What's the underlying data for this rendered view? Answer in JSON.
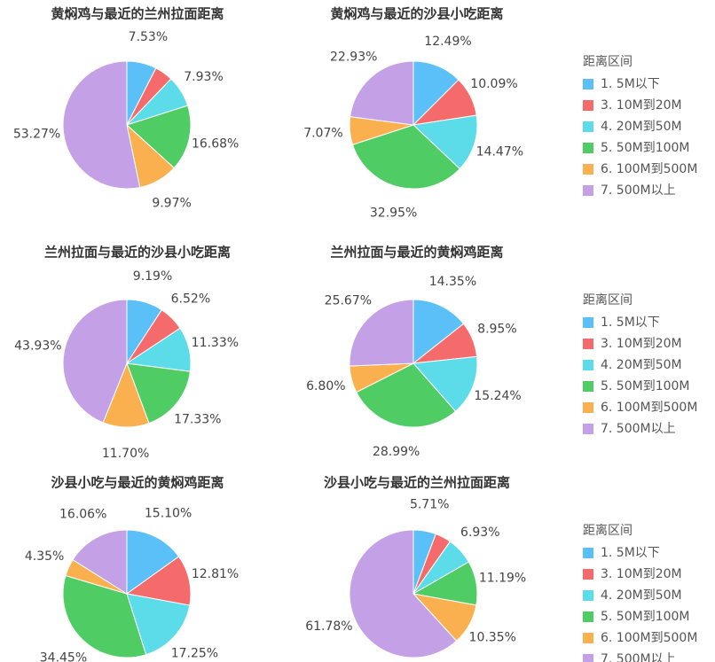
{
  "chart_data": [
    {
      "type": "pie",
      "title": "黄焖鸡与最近的兰州拉面距离",
      "categories": [
        "1. 5M以下",
        "3. 10M到20M",
        "4. 20M到50M",
        "5. 50M到100M",
        "6. 100M到500M",
        "7. 500M以上"
      ],
      "colors": [
        "#5bc0f8",
        "#f56b6b",
        "#5cdbe8",
        "#4fcd64",
        "#fbb04f",
        "#c4a0e6"
      ],
      "values": [
        7.53,
        4.62,
        7.93,
        16.68,
        9.97,
        53.27
      ],
      "value_labels": [
        "7.53%",
        null,
        "7.93%",
        "16.68%",
        "9.97%",
        "53.27%"
      ]
    },
    {
      "type": "pie",
      "title": "黄焖鸡与最近的沙县小吃距离",
      "categories": [
        "1. 5M以下",
        "3. 10M到20M",
        "4. 20M到50M",
        "5. 50M到100M",
        "6. 100M到500M",
        "7. 500M以上"
      ],
      "colors": [
        "#5bc0f8",
        "#f56b6b",
        "#5cdbe8",
        "#4fcd64",
        "#fbb04f",
        "#c4a0e6"
      ],
      "values": [
        12.49,
        10.09,
        14.47,
        32.95,
        7.07,
        22.93
      ],
      "value_labels": [
        "12.49%",
        "10.09%",
        "14.47%",
        "32.95%",
        "7.07%",
        "22.93%"
      ],
      "legend": {
        "title": "距离区间",
        "position": "right"
      }
    },
    {
      "type": "pie",
      "title": "兰州拉面与最近的沙县小吃距离",
      "categories": [
        "1. 5M以下",
        "3. 10M到20M",
        "4. 20M到50M",
        "5. 50M到100M",
        "6. 100M到500M",
        "7. 500M以上"
      ],
      "colors": [
        "#5bc0f8",
        "#f56b6b",
        "#5cdbe8",
        "#4fcd64",
        "#fbb04f",
        "#c4a0e6"
      ],
      "values": [
        9.19,
        6.52,
        11.33,
        17.33,
        11.7,
        43.93
      ],
      "value_labels": [
        "9.19%",
        "6.52%",
        "11.33%",
        "17.33%",
        "11.70%",
        "43.93%"
      ]
    },
    {
      "type": "pie",
      "title": "兰州拉面与最近的黄焖鸡距离",
      "categories": [
        "1. 5M以下",
        "3. 10M到20M",
        "4. 20M到50M",
        "5. 50M到100M",
        "6. 100M到500M",
        "7. 500M以上"
      ],
      "colors": [
        "#5bc0f8",
        "#f56b6b",
        "#5cdbe8",
        "#4fcd64",
        "#fbb04f",
        "#c4a0e6"
      ],
      "values": [
        14.35,
        8.95,
        15.24,
        28.99,
        6.8,
        25.67
      ],
      "value_labels": [
        "14.35%",
        "8.95%",
        "15.24%",
        "28.99%",
        "6.80%",
        "25.67%"
      ],
      "legend": {
        "title": "距离区间",
        "position": "right"
      }
    },
    {
      "type": "pie",
      "title": "沙县小吃与最近的黄焖鸡距离",
      "categories": [
        "1. 5M以下",
        "3. 10M到20M",
        "4. 20M到50M",
        "5. 50M到100M",
        "6. 100M到500M",
        "7. 500M以上"
      ],
      "colors": [
        "#5bc0f8",
        "#f56b6b",
        "#5cdbe8",
        "#4fcd64",
        "#fbb04f",
        "#c4a0e6"
      ],
      "values": [
        15.1,
        12.81,
        17.25,
        34.45,
        4.35,
        16.06
      ],
      "value_labels": [
        "15.10%",
        "12.81%",
        "17.25%",
        "34.45%",
        "4.35%",
        "16.06%"
      ]
    },
    {
      "type": "pie",
      "title": "沙县小吃与最近的兰州拉面距离",
      "categories": [
        "1. 5M以下",
        "3. 10M到20M",
        "4. 20M到50M",
        "5. 50M到100M",
        "6. 100M到500M",
        "7. 500M以上"
      ],
      "colors": [
        "#5bc0f8",
        "#f56b6b",
        "#5cdbe8",
        "#4fcd64",
        "#fbb04f",
        "#c4a0e6"
      ],
      "values": [
        5.71,
        4.04,
        6.93,
        11.19,
        10.35,
        61.78
      ],
      "value_labels": [
        "5.71%",
        null,
        "6.93%",
        "11.19%",
        "10.35%",
        "61.78%"
      ],
      "legend": {
        "title": "距离区间",
        "position": "right"
      }
    }
  ]
}
